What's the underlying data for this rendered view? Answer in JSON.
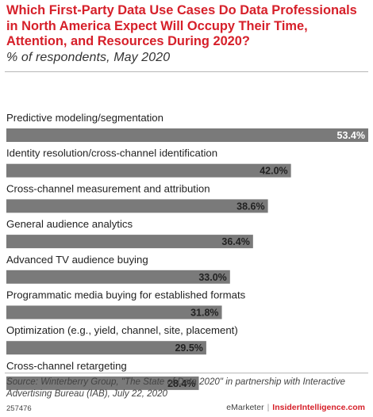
{
  "header": {
    "title": "Which First-Party Data Use Cases Do Data Professionals in North America Expect Will Occupy Their Time, Attention, and Resources During 2020?",
    "subtitle": "% of respondents, May 2020"
  },
  "chart_data": {
    "type": "bar",
    "orientation": "horizontal",
    "title": "Which First-Party Data Use Cases Do Data Professionals in North America Expect Will Occupy Their Time, Attention, and Resources During 2020?",
    "subtitle": "% of respondents, May 2020",
    "categories": [
      "Predictive modeling/segmentation",
      "Identity resolution/cross-channel identification",
      "Cross-channel measurement and attribution",
      "General audience analytics",
      "Advanced TV audience buying",
      "Programmatic media buying for established formats",
      "Optimization (e.g., yield, channel, site, placement)",
      "Cross-channel retargeting"
    ],
    "values": [
      53.4,
      42.0,
      38.6,
      36.4,
      33.0,
      31.8,
      29.5,
      28.4
    ],
    "value_labels": [
      "53.4%",
      "42.0%",
      "38.6%",
      "36.4%",
      "33.0%",
      "31.8%",
      "29.5%",
      "28.4%"
    ],
    "xlim": [
      0,
      53.4
    ],
    "grid": false,
    "legend": "none",
    "colors": {
      "bar": "#7a7a7a",
      "label_inside": "#ffffff",
      "label_outside": "#222222",
      "title": "#d6202a"
    }
  },
  "footer": {
    "source": "Source: Winterberry Group, \"The State of Data 2020\" in partnership with Interactive Advertising Bureau (IAB), July 22, 2020",
    "chart_id": "257476",
    "brand_emarketer": "eMarketer",
    "brand_separator": "|",
    "brand_insider": "InsiderIntelligence.com"
  }
}
